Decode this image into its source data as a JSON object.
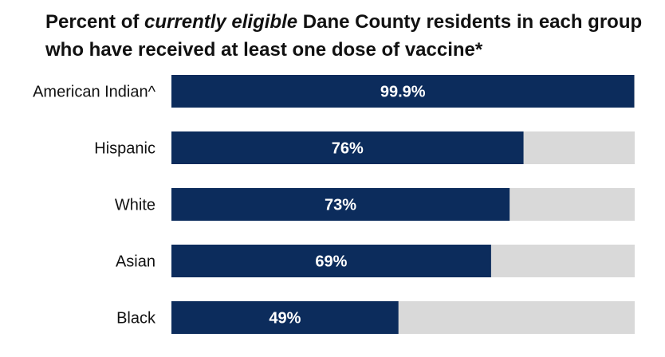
{
  "title": {
    "prefix": "Percent of ",
    "emphasis": "currently eligible",
    "suffix": " Dane County residents in each group who have received at least one dose of vaccine*"
  },
  "colors": {
    "bar": "#0c2c5c",
    "track": "#d9d9d9",
    "value_text": "#ffffff",
    "label_text": "#111111"
  },
  "chart_data": {
    "type": "bar",
    "orientation": "horizontal",
    "stacked_background": true,
    "categories": [
      "American Indian^",
      "Hispanic",
      "White",
      "Asian",
      "Black"
    ],
    "values": [
      99.9,
      76,
      73,
      69,
      49
    ],
    "value_labels": [
      "99.9%",
      "76%",
      "73%",
      "69%",
      "49%"
    ],
    "xlim": [
      0,
      100
    ],
    "unit": "%",
    "grid": false,
    "legend": "none"
  }
}
